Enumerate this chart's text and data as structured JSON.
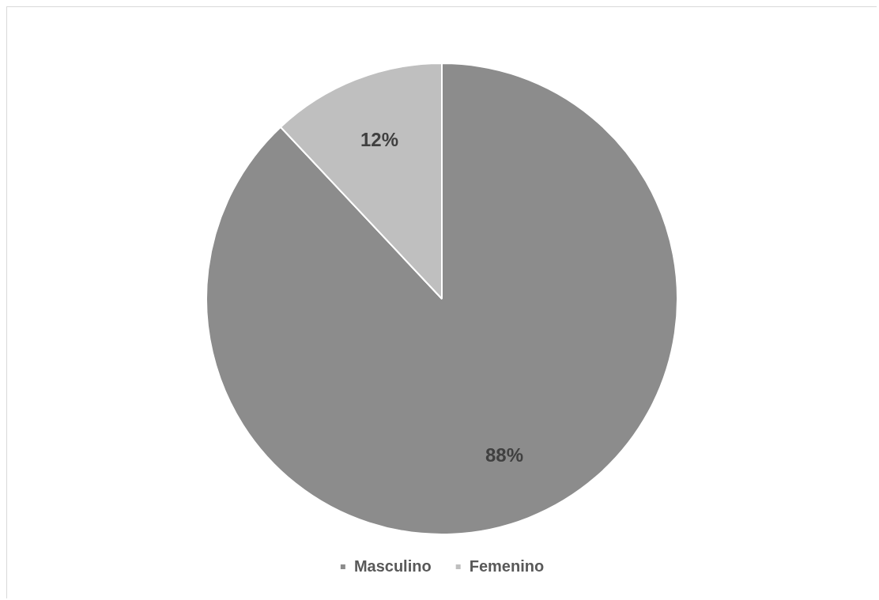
{
  "chart_data": {
    "type": "pie",
    "categories": [
      "Masculino",
      "Femenino"
    ],
    "values": [
      88,
      12
    ],
    "colors": [
      "#8c8c8c",
      "#bfbfbf"
    ],
    "value_labels": [
      "88%",
      "12%"
    ],
    "legend": "bottom"
  }
}
